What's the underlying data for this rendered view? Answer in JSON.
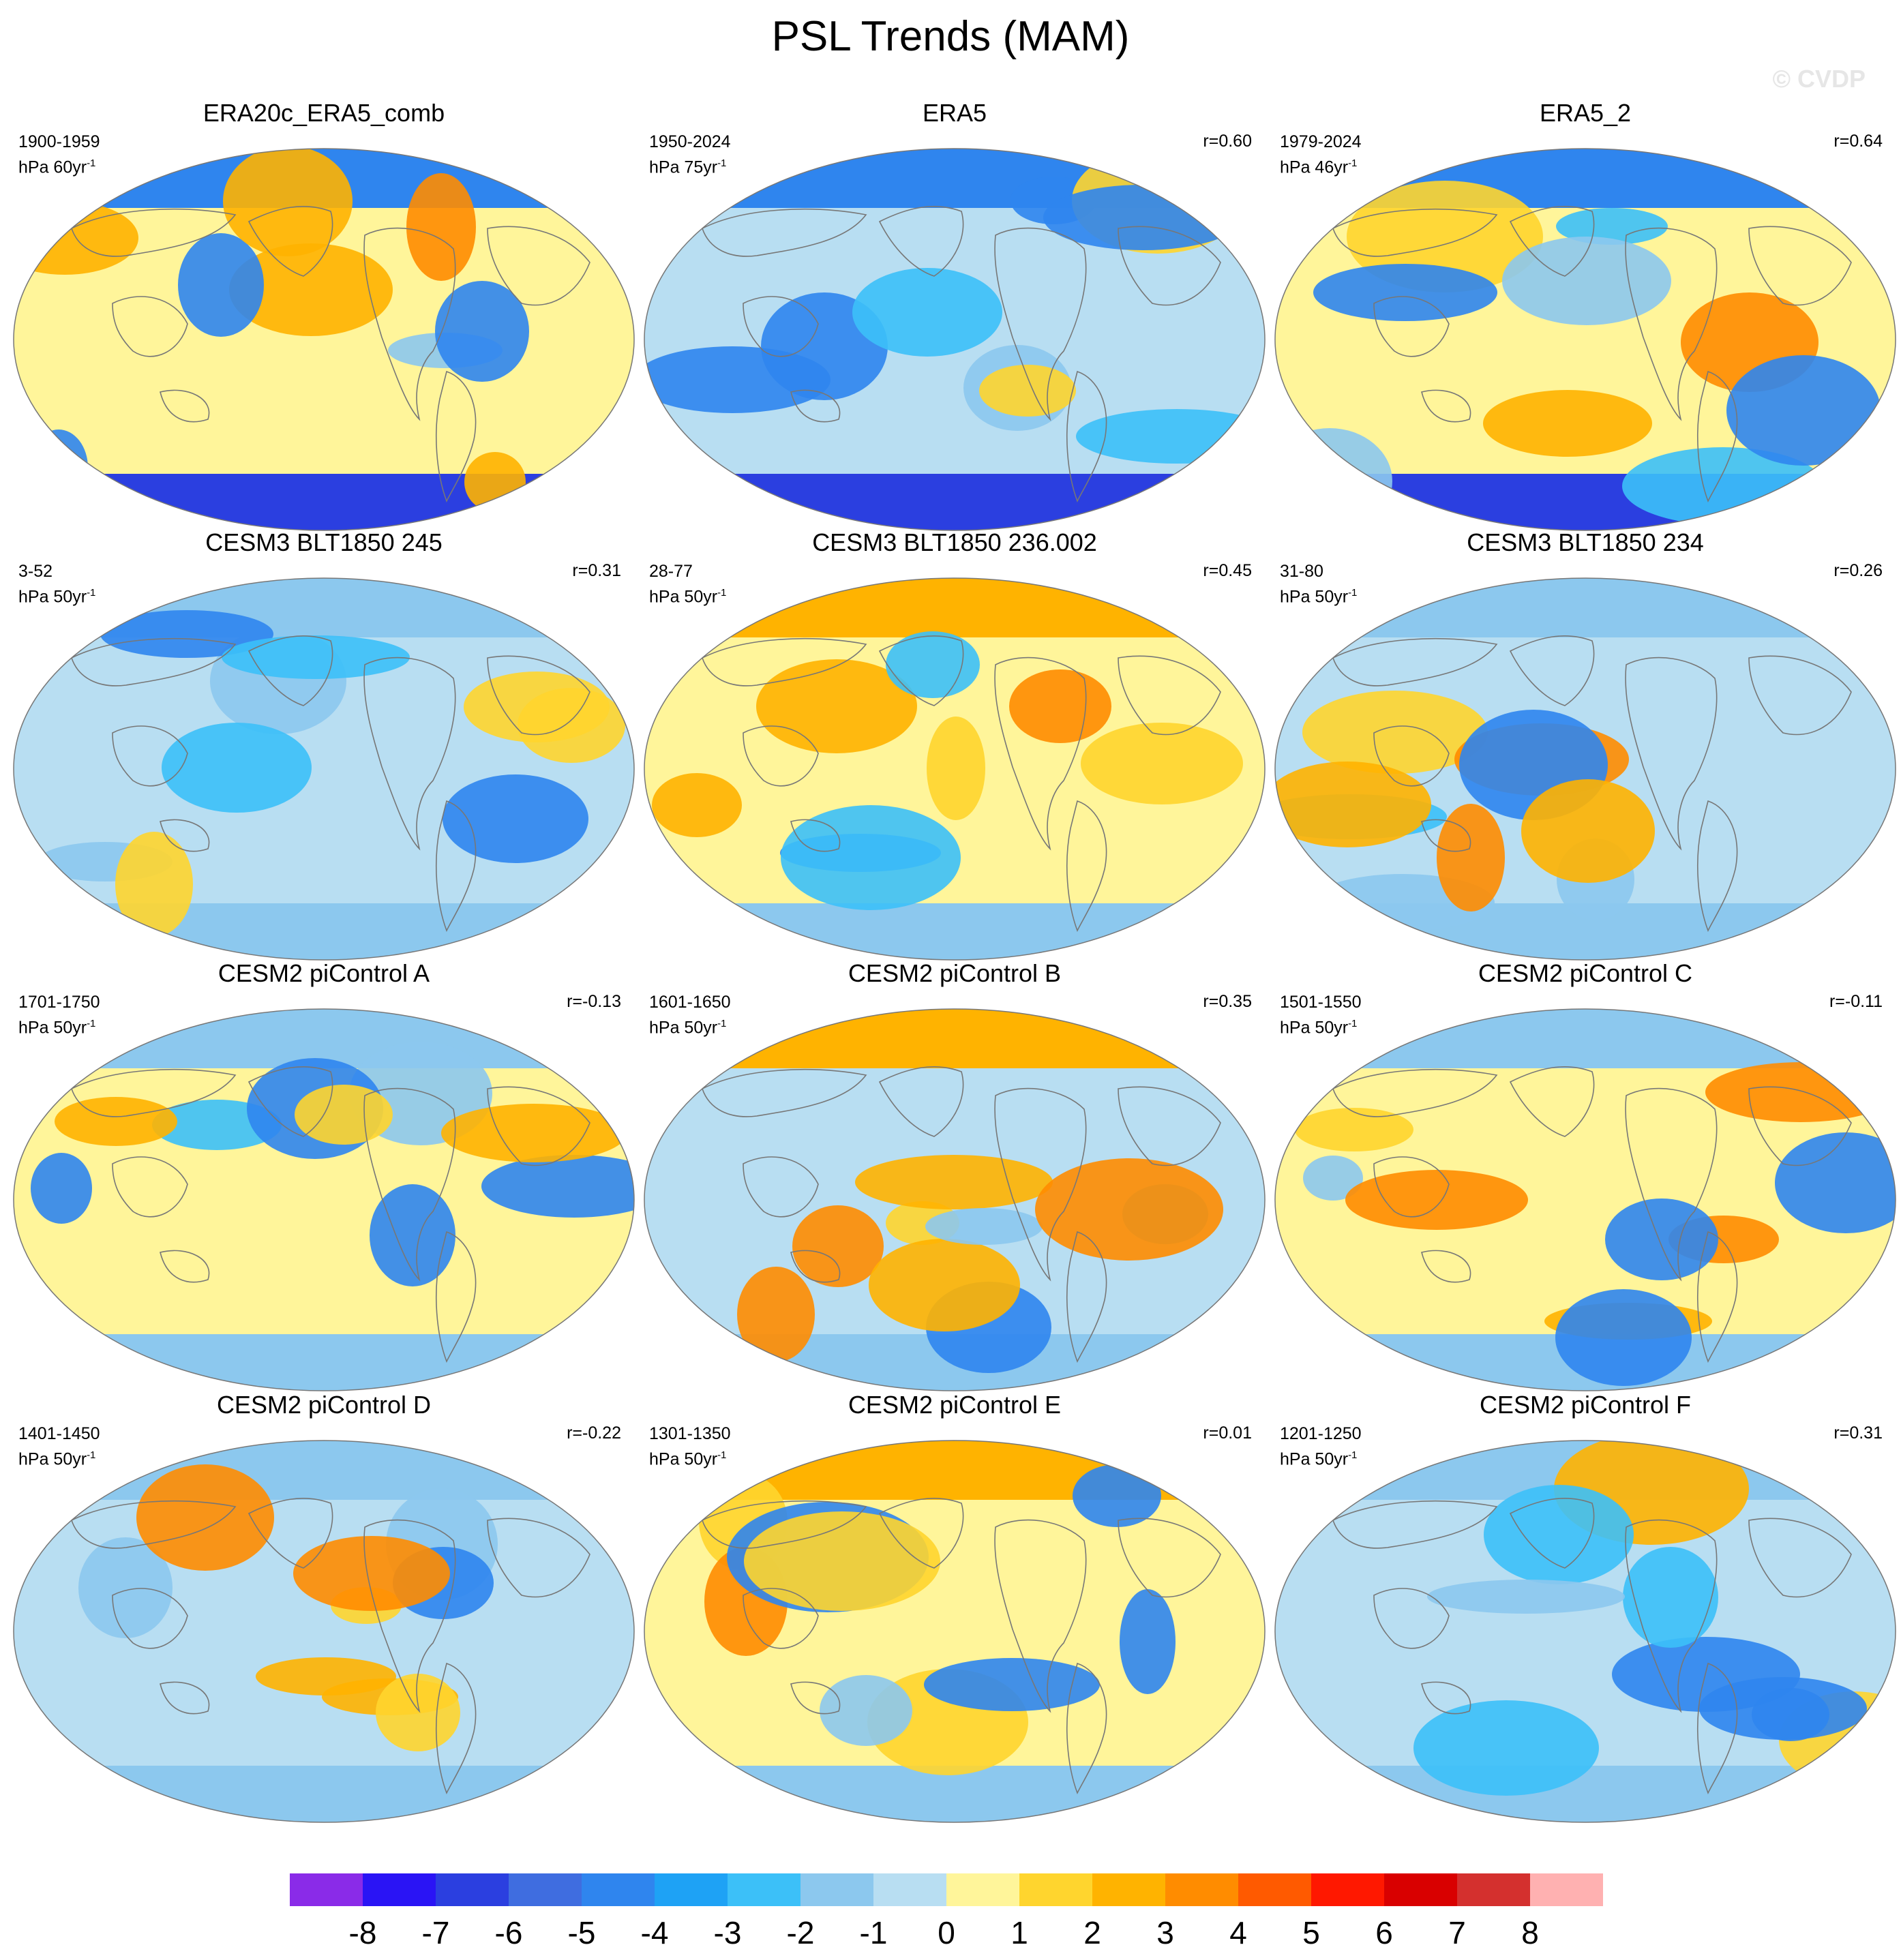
{
  "figure_title": "PSL Trends (MAM)",
  "credit": "© CVDP",
  "panels": [
    {
      "title": "ERA20c_ERA5_comb",
      "period": "1900-1959",
      "units": "hPa 60yr",
      "exp": "-1",
      "r": ""
    },
    {
      "title": "ERA5",
      "period": "1950-2024",
      "units": "hPa 75yr",
      "exp": "-1",
      "r": "r=0.60"
    },
    {
      "title": "ERA5_2",
      "period": "1979-2024",
      "units": "hPa 46yr",
      "exp": "-1",
      "r": "r=0.64"
    },
    {
      "title": "CESM3 BLT1850 245",
      "period": "3-52",
      "units": "hPa 50yr",
      "exp": "-1",
      "r": "r=0.31"
    },
    {
      "title": "CESM3 BLT1850 236.002",
      "period": "28-77",
      "units": "hPa 50yr",
      "exp": "-1",
      "r": "r=0.45"
    },
    {
      "title": "CESM3 BLT1850 234",
      "period": "31-80",
      "units": "hPa 50yr",
      "exp": "-1",
      "r": "r=0.26"
    },
    {
      "title": "CESM2 piControl A",
      "period": "1701-1750",
      "units": "hPa 50yr",
      "exp": "-1",
      "r": "r=-0.13"
    },
    {
      "title": "CESM2 piControl B",
      "period": "1601-1650",
      "units": "hPa 50yr",
      "exp": "-1",
      "r": "r=0.35"
    },
    {
      "title": "CESM2 piControl C",
      "period": "1501-1550",
      "units": "hPa 50yr",
      "exp": "-1",
      "r": "r=-0.11"
    },
    {
      "title": "CESM2 piControl D",
      "period": "1401-1450",
      "units": "hPa 50yr",
      "exp": "-1",
      "r": "r=-0.22"
    },
    {
      "title": "CESM2 piControl E",
      "period": "1301-1350",
      "units": "hPa 50yr",
      "exp": "-1",
      "r": "r=0.01"
    },
    {
      "title": "CESM2 piControl F",
      "period": "1201-1250",
      "units": "hPa 50yr",
      "exp": "-1",
      "r": "r=0.31"
    }
  ],
  "colorbar": {
    "colors": [
      "#8a2be8",
      "#2a14f5",
      "#2b3fe0",
      "#3f6de0",
      "#2f85ee",
      "#1ea2f5",
      "#3cc0f8",
      "#8cc8ee",
      "#b8def2",
      "#fff59a",
      "#ffd52e",
      "#ffb300",
      "#ff8c00",
      "#ff5a00",
      "#ff1800",
      "#d90000",
      "#d4302e",
      "#ffb1b1"
    ],
    "labels": [
      "-8",
      "-7",
      "-6",
      "-5",
      "-4",
      "-3",
      "-2",
      "-1",
      "0",
      "1",
      "2",
      "3",
      "4",
      "5",
      "6",
      "7",
      "8"
    ]
  }
}
